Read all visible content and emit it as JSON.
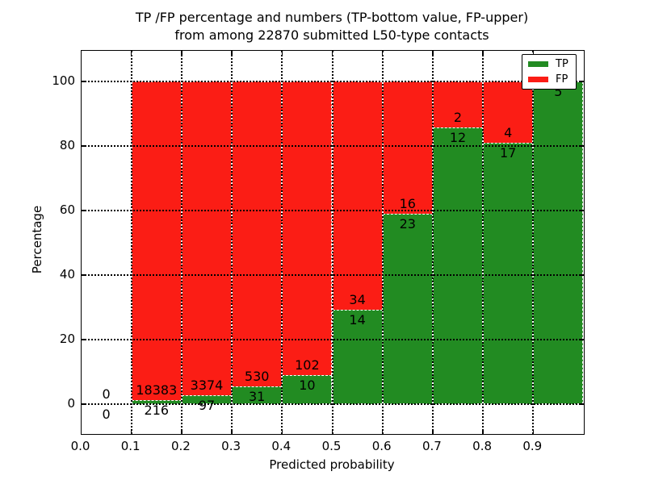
{
  "title": {
    "line1": "TP /FP percentage and numbers (TP-bottom value, FP-upper)",
    "line2": "from among 22870 submitted L50-type contacts"
  },
  "axes": {
    "xlabel": "Predicted probability",
    "ylabel": "Percentage",
    "x_tick_labels": [
      "0.0",
      "0.1",
      "0.2",
      "0.3",
      "0.4",
      "0.5",
      "0.6",
      "0.7",
      "0.8",
      "0.9"
    ],
    "y_tick_labels": [
      "0",
      "20",
      "40",
      "60",
      "80",
      "100"
    ]
  },
  "legend": {
    "items": [
      {
        "label": "TP",
        "color": "#228b22"
      },
      {
        "label": "FP",
        "color": "#fb1d15"
      }
    ],
    "position": "upper right"
  },
  "colors": {
    "tp": "#228b22",
    "fp": "#fb1d15",
    "bar_edge": "#ffffff",
    "grid": "#000000",
    "background": "#ffffff"
  },
  "chart_data": {
    "type": "bar",
    "stacked": true,
    "normalized_to_percent": true,
    "title": "TP /FP percentage and numbers (TP-bottom value, FP-upper) from among 22870 submitted L50-type contacts",
    "total_contacts": 22870,
    "xlabel": "Predicted probability",
    "ylabel": "Percentage",
    "xlim": [
      0.0,
      1.0
    ],
    "ylim": [
      0,
      100
    ],
    "grid": true,
    "legend_position": "upper right",
    "series_names": [
      "TP",
      "FP"
    ],
    "bins": [
      {
        "x_start": 0.0,
        "x_end": 0.1,
        "tp_count": 0,
        "fp_count": 0,
        "tp_percent": 0,
        "has_bar": false
      },
      {
        "x_start": 0.1,
        "x_end": 0.2,
        "tp_count": 216,
        "fp_count": 18383,
        "tp_percent": 1.16,
        "has_bar": true
      },
      {
        "x_start": 0.2,
        "x_end": 0.3,
        "tp_count": 97,
        "fp_count": 3374,
        "tp_percent": 2.79,
        "has_bar": true
      },
      {
        "x_start": 0.3,
        "x_end": 0.4,
        "tp_count": 31,
        "fp_count": 530,
        "tp_percent": 5.53,
        "has_bar": true
      },
      {
        "x_start": 0.4,
        "x_end": 0.5,
        "tp_count": 10,
        "fp_count": 102,
        "tp_percent": 8.93,
        "has_bar": true
      },
      {
        "x_start": 0.5,
        "x_end": 0.6,
        "tp_count": 14,
        "fp_count": 34,
        "tp_percent": 29.17,
        "has_bar": true
      },
      {
        "x_start": 0.6,
        "x_end": 0.7,
        "tp_count": 23,
        "fp_count": 16,
        "tp_percent": 58.97,
        "has_bar": true
      },
      {
        "x_start": 0.7,
        "x_end": 0.8,
        "tp_count": 12,
        "fp_count": 2,
        "tp_percent": 85.71,
        "has_bar": true
      },
      {
        "x_start": 0.8,
        "x_end": 0.9,
        "tp_count": 17,
        "fp_count": 4,
        "tp_percent": 80.95,
        "has_bar": true
      },
      {
        "x_start": 0.9,
        "x_end": 1.0,
        "tp_count": 5,
        "fp_count": 0,
        "tp_percent": 100.0,
        "has_bar": true
      }
    ]
  }
}
